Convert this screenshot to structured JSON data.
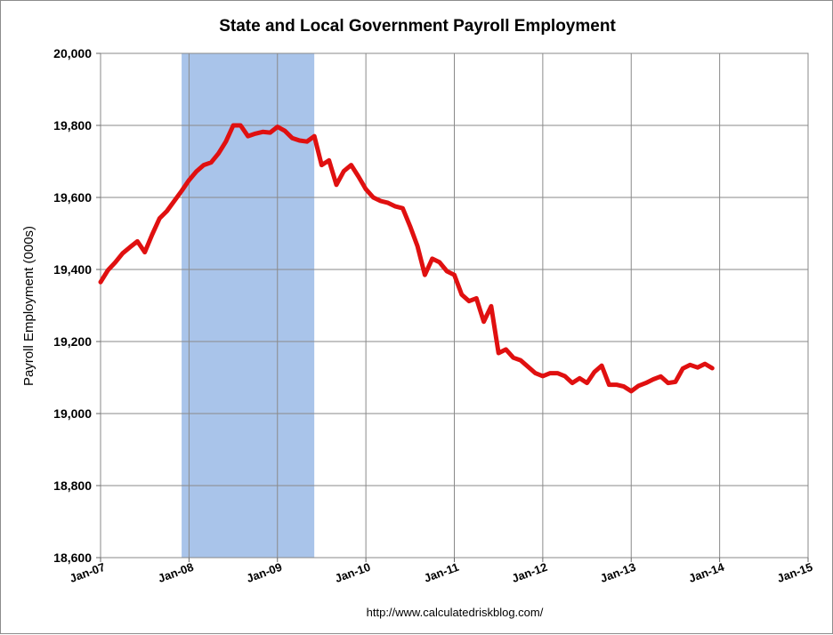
{
  "chart_data": {
    "type": "line",
    "title": "State and Local Government Payroll Employment",
    "ylabel": "Payroll Employment (000s)",
    "xlabel": "",
    "source": "http://www.calculatedriskblog.com/",
    "ylim": [
      18600,
      20000
    ],
    "yticks": [
      "18,600",
      "18,800",
      "19,000",
      "19,200",
      "19,400",
      "19,600",
      "19,800",
      "20,000"
    ],
    "yticks_values": [
      18600,
      18800,
      19000,
      19200,
      19400,
      19600,
      19800,
      20000
    ],
    "xticks": [
      "Jan-07",
      "Jan-08",
      "Jan-09",
      "Jan-10",
      "Jan-11",
      "Jan-12",
      "Jan-13",
      "Jan-14",
      "Jan-15"
    ],
    "xlim": [
      "2007-01",
      "2015-01"
    ],
    "grid": true,
    "recession_shading": {
      "start": "2007-12",
      "end": "2009-06",
      "color": "#a9c4ea"
    },
    "series": [
      {
        "color": "#e01010",
        "x": [
          "2007-01",
          "2007-02",
          "2007-03",
          "2007-04",
          "2007-05",
          "2007-06",
          "2007-07",
          "2007-08",
          "2007-09",
          "2007-10",
          "2007-11",
          "2007-12",
          "2008-01",
          "2008-02",
          "2008-03",
          "2008-04",
          "2008-05",
          "2008-06",
          "2008-07",
          "2008-08",
          "2008-09",
          "2008-10",
          "2008-11",
          "2008-12",
          "2009-01",
          "2009-02",
          "2009-03",
          "2009-04",
          "2009-05",
          "2009-06",
          "2009-07",
          "2009-08",
          "2009-09",
          "2009-10",
          "2009-11",
          "2009-12",
          "2010-01",
          "2010-02",
          "2010-03",
          "2010-04",
          "2010-05",
          "2010-06",
          "2010-07",
          "2010-08",
          "2010-09",
          "2010-10",
          "2010-11",
          "2010-12",
          "2011-01",
          "2011-02",
          "2011-03",
          "2011-04",
          "2011-05",
          "2011-06",
          "2011-07",
          "2011-08",
          "2011-09",
          "2011-10",
          "2011-11",
          "2011-12",
          "2012-01",
          "2012-02",
          "2012-03",
          "2012-04",
          "2012-05",
          "2012-06",
          "2012-07",
          "2012-08",
          "2012-09",
          "2012-10",
          "2012-11",
          "2012-12",
          "2013-01",
          "2013-02",
          "2013-03",
          "2013-04",
          "2013-05",
          "2013-06",
          "2013-07",
          "2013-08",
          "2013-09",
          "2013-10",
          "2013-11",
          "2013-12"
        ],
        "values": [
          19365,
          19398,
          19420,
          19445,
          19462,
          19478,
          19448,
          19497,
          19542,
          19562,
          19590,
          19618,
          19648,
          19672,
          19690,
          19697,
          19722,
          19755,
          19800,
          19800,
          19770,
          19777,
          19782,
          19780,
          19796,
          19785,
          19765,
          19758,
          19755,
          19770,
          19690,
          19703,
          19635,
          19673,
          19690,
          19658,
          19623,
          19600,
          19590,
          19585,
          19575,
          19570,
          19520,
          19465,
          19385,
          19430,
          19420,
          19395,
          19385,
          19330,
          19312,
          19320,
          19255,
          19298,
          19168,
          19178,
          19155,
          19148,
          19130,
          19112,
          19104,
          19112,
          19112,
          19104,
          19085,
          19098,
          19085,
          19115,
          19133,
          19080,
          19080,
          19075,
          19062,
          19077,
          19085,
          19095,
          19103,
          19085,
          19088,
          19125,
          19135,
          19128,
          19138,
          19126
        ]
      }
    ]
  }
}
